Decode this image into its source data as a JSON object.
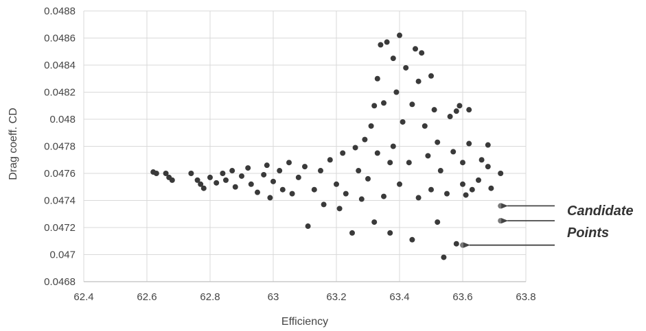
{
  "chart_data": {
    "type": "scatter",
    "title": "",
    "xlabel": "Efficiency",
    "ylabel": "Drag coeff. CD",
    "xlim": [
      62.4,
      63.8
    ],
    "ylim": [
      0.0468,
      0.0488
    ],
    "x_ticks": [
      "62.4",
      "62.6",
      "62.8",
      "63",
      "63.2",
      "63.4",
      "63.6",
      "63.8"
    ],
    "y_ticks": [
      "0.0468",
      "0.047",
      "0.0472",
      "0.0474",
      "0.0476",
      "0.0478",
      "0.048",
      "0.0482",
      "0.0484",
      "0.0486",
      "0.0488"
    ],
    "grid": true,
    "legend": "none",
    "colors": {
      "points": "#3a3a3a",
      "candidates": "#7a7a7a",
      "grid": "#d9d9d9",
      "arrow": "#444444"
    },
    "series": [
      {
        "values": [
          [
            62.63,
            0.0476
          ],
          [
            62.62,
            0.04761
          ],
          [
            62.66,
            0.0476
          ],
          [
            62.67,
            0.04757
          ],
          [
            62.68,
            0.04755
          ],
          [
            62.74,
            0.0476
          ],
          [
            62.76,
            0.04755
          ],
          [
            62.77,
            0.04752
          ],
          [
            62.78,
            0.04749
          ],
          [
            62.8,
            0.04757
          ],
          [
            62.82,
            0.04753
          ],
          [
            62.84,
            0.0476
          ],
          [
            62.85,
            0.04755
          ],
          [
            62.87,
            0.04762
          ],
          [
            62.88,
            0.0475
          ],
          [
            62.9,
            0.04758
          ],
          [
            62.92,
            0.04764
          ],
          [
            62.93,
            0.04752
          ],
          [
            62.95,
            0.04746
          ],
          [
            62.97,
            0.04759
          ],
          [
            62.98,
            0.04766
          ],
          [
            62.99,
            0.04742
          ],
          [
            63.0,
            0.04754
          ],
          [
            63.02,
            0.04762
          ],
          [
            63.03,
            0.04748
          ],
          [
            63.05,
            0.04768
          ],
          [
            63.06,
            0.04745
          ],
          [
            63.08,
            0.04757
          ],
          [
            63.1,
            0.04765
          ],
          [
            63.11,
            0.04721
          ],
          [
            63.13,
            0.04748
          ],
          [
            63.15,
            0.04762
          ],
          [
            63.16,
            0.04737
          ],
          [
            63.18,
            0.0477
          ],
          [
            63.2,
            0.04752
          ],
          [
            63.21,
            0.04734
          ],
          [
            63.22,
            0.04775
          ],
          [
            63.23,
            0.04745
          ],
          [
            63.25,
            0.04716
          ],
          [
            63.26,
            0.04779
          ],
          [
            63.27,
            0.04762
          ],
          [
            63.28,
            0.04741
          ],
          [
            63.29,
            0.04785
          ],
          [
            63.3,
            0.04756
          ],
          [
            63.31,
            0.04795
          ],
          [
            63.32,
            0.04724
          ],
          [
            63.32,
            0.0481
          ],
          [
            63.33,
            0.04775
          ],
          [
            63.33,
            0.0483
          ],
          [
            63.34,
            0.04855
          ],
          [
            63.35,
            0.04743
          ],
          [
            63.35,
            0.04812
          ],
          [
            63.36,
            0.04857
          ],
          [
            63.37,
            0.04716
          ],
          [
            63.37,
            0.04768
          ],
          [
            63.38,
            0.0478
          ],
          [
            63.38,
            0.04845
          ],
          [
            63.39,
            0.0482
          ],
          [
            63.4,
            0.04862
          ],
          [
            63.4,
            0.04752
          ],
          [
            63.41,
            0.04798
          ],
          [
            63.42,
            0.04838
          ],
          [
            63.43,
            0.04768
          ],
          [
            63.44,
            0.04811
          ],
          [
            63.44,
            0.04711
          ],
          [
            63.45,
            0.04852
          ],
          [
            63.46,
            0.04742
          ],
          [
            63.46,
            0.04828
          ],
          [
            63.47,
            0.04849
          ],
          [
            63.48,
            0.04795
          ],
          [
            63.49,
            0.04773
          ],
          [
            63.5,
            0.04832
          ],
          [
            63.5,
            0.04748
          ],
          [
            63.51,
            0.04807
          ],
          [
            63.52,
            0.04724
          ],
          [
            63.52,
            0.04783
          ],
          [
            63.53,
            0.04762
          ],
          [
            63.54,
            0.04698
          ],
          [
            63.55,
            0.04745
          ],
          [
            63.56,
            0.04802
          ],
          [
            63.57,
            0.04776
          ],
          [
            63.58,
            0.04806
          ],
          [
            63.58,
            0.04708
          ],
          [
            63.59,
            0.0481
          ],
          [
            63.6,
            0.04752
          ],
          [
            63.6,
            0.04768
          ],
          [
            63.61,
            0.04744
          ],
          [
            63.62,
            0.04782
          ],
          [
            63.62,
            0.04807
          ],
          [
            63.63,
            0.04748
          ],
          [
            63.65,
            0.04755
          ],
          [
            63.66,
            0.0477
          ],
          [
            63.68,
            0.04781
          ],
          [
            63.68,
            0.04765
          ],
          [
            63.69,
            0.04749
          ],
          [
            63.72,
            0.0476
          ]
        ]
      },
      {
        "values": [
          [
            63.72,
            0.04736
          ],
          [
            63.72,
            0.04725
          ],
          [
            63.6,
            0.04707
          ]
        ]
      }
    ],
    "annotations": [
      {
        "text": "Candidate",
        "points_to": [
          [
            63.72,
            0.04736
          ],
          [
            63.72,
            0.04725
          ]
        ]
      },
      {
        "text": "Points",
        "points_to": [
          [
            63.6,
            0.04707
          ]
        ]
      }
    ]
  }
}
